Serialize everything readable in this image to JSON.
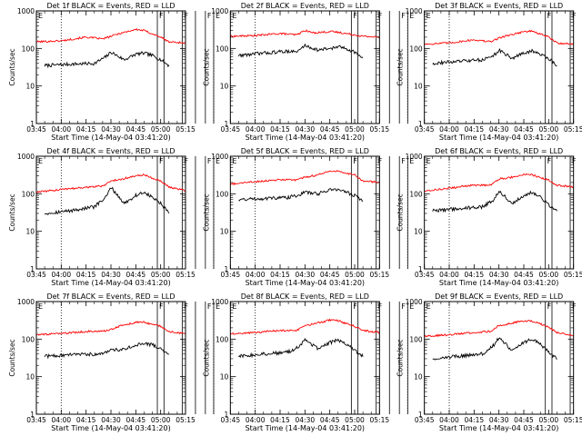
{
  "chart_data": {
    "type": "line",
    "shared": {
      "xlabel": "Start Time (14-May-04 03:41:20)",
      "ylabel": "Counts/sec",
      "yscale": "log",
      "ylim": [
        1,
        1000
      ],
      "yticks": [
        1,
        10,
        100,
        1000
      ],
      "xlim": [
        "03:45",
        "05:15"
      ],
      "xticks": [
        "03:45",
        "04:00",
        "04:15",
        "04:30",
        "04:45",
        "05:00",
        "05:15"
      ],
      "colors": {
        "events": "#000000",
        "lld": "#ff0000"
      },
      "marker_labels": [
        "F",
        "F",
        "F",
        "E"
      ],
      "marker_times_min": [
        73,
        77,
        88,
        96,
        102,
        107
      ],
      "dotted_times_min": [
        15,
        107
      ]
    },
    "panels": [
      {
        "title": "Det 1f BLACK = Events, RED = LLD",
        "x_start": "03:50",
        "x_end": "05:14",
        "events": {
          "x": [
            "03:50",
            "04:05",
            "04:20",
            "04:27",
            "04:30",
            "04:38",
            "04:45",
            "04:50",
            "04:55",
            "05:00",
            "05:05"
          ],
          "y": [
            35,
            38,
            40,
            60,
            80,
            50,
            70,
            75,
            65,
            50,
            35
          ]
        },
        "lld": {
          "x": [
            "03:45",
            "04:00",
            "04:15",
            "04:25",
            "04:30",
            "04:35",
            "04:45",
            "04:50",
            "05:00",
            "05:05",
            "05:15"
          ],
          "y": [
            150,
            160,
            200,
            180,
            210,
            250,
            320,
            300,
            200,
            150,
            140
          ]
        }
      },
      {
        "title": "Det 2f BLACK = Events, RED = LLD",
        "x_start": "03:50",
        "x_end": "05:14",
        "events": {
          "x": [
            "03:50",
            "04:05",
            "04:20",
            "04:25",
            "04:30",
            "04:38",
            "04:45",
            "04:50",
            "04:55",
            "05:00",
            "05:05"
          ],
          "y": [
            65,
            75,
            85,
            80,
            120,
            90,
            100,
            110,
            100,
            80,
            55
          ]
        },
        "lld": {
          "x": [
            "03:45",
            "04:00",
            "04:15",
            "04:25",
            "04:30",
            "04:35",
            "04:45",
            "04:50",
            "05:00",
            "05:05",
            "05:15"
          ],
          "y": [
            210,
            220,
            250,
            230,
            300,
            260,
            280,
            270,
            230,
            210,
            200
          ]
        }
      },
      {
        "title": "Det 3f BLACK = Events, RED = LLD",
        "x_start": "03:50",
        "x_end": "05:14",
        "events": {
          "x": [
            "03:50",
            "04:05",
            "04:20",
            "04:27",
            "04:30",
            "04:38",
            "04:45",
            "04:50",
            "04:55",
            "05:00",
            "05:05"
          ],
          "y": [
            40,
            45,
            50,
            65,
            90,
            55,
            75,
            85,
            70,
            55,
            35
          ]
        },
        "lld": {
          "x": [
            "03:45",
            "04:00",
            "04:15",
            "04:25",
            "04:30",
            "04:35",
            "04:45",
            "04:50",
            "05:00",
            "05:05",
            "05:15"
          ],
          "y": [
            130,
            140,
            170,
            150,
            190,
            220,
            280,
            290,
            200,
            140,
            130
          ]
        }
      },
      {
        "title": "Det 4f BLACK = Events, RED = LLD",
        "x_start": "03:50",
        "x_end": "05:14",
        "events": {
          "x": [
            "03:50",
            "04:05",
            "04:20",
            "04:27",
            "04:30",
            "04:38",
            "04:45",
            "04:50",
            "04:55",
            "05:00",
            "05:05"
          ],
          "y": [
            30,
            35,
            45,
            80,
            150,
            55,
            90,
            110,
            80,
            55,
            30
          ]
        },
        "lld": {
          "x": [
            "03:45",
            "04:00",
            "04:15",
            "04:25",
            "04:30",
            "04:35",
            "04:45",
            "04:50",
            "05:00",
            "05:05",
            "05:15"
          ],
          "y": [
            110,
            130,
            150,
            160,
            220,
            240,
            300,
            320,
            220,
            150,
            120
          ]
        }
      },
      {
        "title": "Det 5f BLACK = Events, RED = LLD",
        "x_start": "03:50",
        "x_end": "05:14",
        "events": {
          "x": [
            "03:50",
            "04:05",
            "04:20",
            "04:27",
            "04:30",
            "04:38",
            "04:45",
            "04:50",
            "04:55",
            "05:00",
            "05:05"
          ],
          "y": [
            70,
            75,
            80,
            95,
            110,
            100,
            130,
            130,
            110,
            90,
            65
          ]
        },
        "lld": {
          "x": [
            "03:45",
            "04:00",
            "04:15",
            "04:25",
            "04:30",
            "04:35",
            "04:45",
            "04:50",
            "05:00",
            "05:05",
            "05:15"
          ],
          "y": [
            180,
            210,
            240,
            230,
            280,
            300,
            400,
            400,
            320,
            220,
            200
          ]
        }
      },
      {
        "title": "Det 6f BLACK = Events, RED = LLD",
        "x_start": "03:50",
        "x_end": "05:14",
        "events": {
          "x": [
            "03:50",
            "04:05",
            "04:20",
            "04:27",
            "04:30",
            "04:38",
            "04:45",
            "04:50",
            "04:55",
            "05:00",
            "05:05"
          ],
          "y": [
            35,
            40,
            45,
            70,
            120,
            55,
            90,
            110,
            80,
            50,
            35
          ]
        },
        "lld": {
          "x": [
            "03:45",
            "04:00",
            "04:15",
            "04:25",
            "04:30",
            "04:35",
            "04:45",
            "04:50",
            "05:00",
            "05:05",
            "05:15"
          ],
          "y": [
            120,
            140,
            170,
            170,
            250,
            260,
            330,
            320,
            230,
            170,
            150
          ]
        }
      },
      {
        "title": "Det 7f BLACK = Events, RED = LLD",
        "x_start": "03:50",
        "x_end": "05:14",
        "events": {
          "x": [
            "03:50",
            "04:05",
            "04:20",
            "04:27",
            "04:30",
            "04:38",
            "04:45",
            "04:50",
            "04:55",
            "05:00",
            "05:05"
          ],
          "y": [
            35,
            38,
            40,
            45,
            50,
            55,
            70,
            75,
            70,
            55,
            40
          ]
        },
        "lld": {
          "x": [
            "03:45",
            "04:00",
            "04:15",
            "04:25",
            "04:30",
            "04:35",
            "04:45",
            "04:50",
            "05:00",
            "05:05",
            "05:15"
          ],
          "y": [
            130,
            140,
            160,
            160,
            180,
            220,
            280,
            280,
            220,
            160,
            140
          ]
        }
      },
      {
        "title": "Det 8f BLACK = Events, RED = LLD",
        "x_start": "03:50",
        "x_end": "05:14",
        "events": {
          "x": [
            "03:50",
            "04:05",
            "04:20",
            "04:27",
            "04:30",
            "04:38",
            "04:45",
            "04:50",
            "04:55",
            "05:00",
            "05:05"
          ],
          "y": [
            35,
            40,
            45,
            65,
            100,
            55,
            80,
            95,
            75,
            50,
            35
          ]
        },
        "lld": {
          "x": [
            "03:45",
            "04:00",
            "04:15",
            "04:25",
            "04:30",
            "04:35",
            "04:45",
            "04:50",
            "05:00",
            "05:05",
            "05:15"
          ],
          "y": [
            140,
            150,
            170,
            170,
            230,
            250,
            320,
            310,
            220,
            170,
            150
          ]
        }
      },
      {
        "title": "Det 9f BLACK = Events, RED = LLD",
        "x_start": "03:50",
        "x_end": "05:14",
        "events": {
          "x": [
            "03:50",
            "04:05",
            "04:20",
            "04:27",
            "04:30",
            "04:38",
            "04:45",
            "04:50",
            "04:55",
            "05:00",
            "05:05"
          ],
          "y": [
            30,
            35,
            40,
            70,
            110,
            50,
            80,
            100,
            75,
            45,
            30
          ]
        },
        "lld": {
          "x": [
            "03:45",
            "04:00",
            "04:15",
            "04:25",
            "04:30",
            "04:35",
            "04:45",
            "04:50",
            "05:00",
            "05:05",
            "05:15"
          ],
          "y": [
            120,
            130,
            150,
            160,
            230,
            250,
            310,
            300,
            210,
            150,
            120
          ]
        }
      }
    ]
  }
}
